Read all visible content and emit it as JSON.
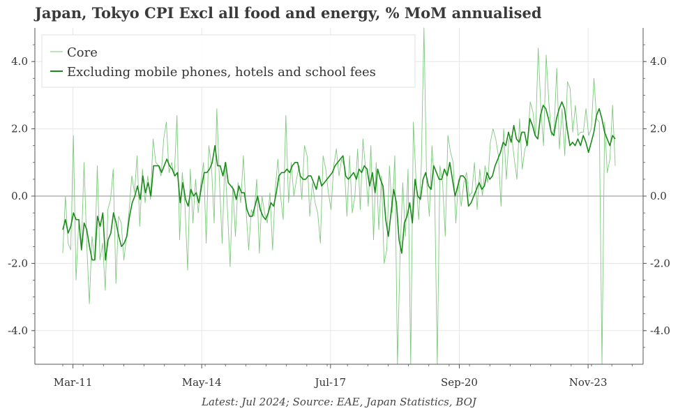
{
  "title": "Japan, Tokyo CPI Excl all food and energy, % MoM annualised",
  "footer": "Latest: Jul 2024; Source: EAE, Japan Statistics, BOJ",
  "chart_data": {
    "type": "line",
    "title": "Japan, Tokyo CPI Excl all food and energy, % MoM annualised",
    "xlabel": "",
    "ylabel": "",
    "x_ticks": [
      "Mar-11",
      "May-14",
      "Jul-17",
      "Sep-20",
      "Nov-23"
    ],
    "x_tick_dates": [
      "2011-03",
      "2014-05",
      "2017-07",
      "2020-09",
      "2023-11"
    ],
    "x_start": "2010-12",
    "x_end": "2024-07",
    "y_ticks": [
      "-4.0",
      "-2.0",
      "0.0",
      "2.0",
      "4.0"
    ],
    "ylim": [
      -5.0,
      5.0
    ],
    "grid": true,
    "dual_y_axis": true,
    "legend_position": "top-left",
    "series": [
      {
        "name": "Core",
        "color": "#7fc97f",
        "values": [
          -1.7,
          0.0,
          -1.4,
          -1.6,
          1.8,
          -2.5,
          -0.8,
          -1.5,
          1.0,
          -1.4,
          -3.2,
          -1.2,
          -1.9,
          0.9,
          -1.9,
          -1.4,
          -2.8,
          -0.4,
          -0.1,
          0.8,
          -2.6,
          -0.6,
          -0.8,
          -1.9,
          -1.2,
          -0.4,
          0.6,
          0.1,
          1.2,
          -0.9,
          0.8,
          -0.2,
          0.6,
          -0.1,
          1.7,
          1.0,
          0.9,
          0.6,
          1.7,
          2.2,
          0.7,
          1.0,
          0.6,
          2.4,
          -1.3,
          0.7,
          -0.3,
          -2.2,
          0.8,
          -0.8,
          0.5,
          -0.5,
          0.4,
          1.0,
          -1.4,
          1.5,
          0.9,
          -0.8,
          2.6,
          0.4,
          -1.4,
          1.0,
          -0.4,
          -2.1,
          0.3,
          -1.2,
          0.4,
          -0.2,
          1.2,
          -0.4,
          -1.6,
          -0.4,
          -0.6,
          0.5,
          -1.7,
          0.0,
          -0.5,
          -0.8,
          0.1,
          -1.6,
          0.2,
          1.1,
          0.0,
          -0.7,
          2.4,
          -0.2,
          1.0,
          0.0,
          0.5,
          0.9,
          -0.1,
          1.5,
          1.2,
          -0.6,
          0.4,
          -0.2,
          -0.5,
          -1.4,
          1.2,
          0.8,
          0.1,
          -0.4,
          0.9,
          1.4,
          0.6,
          1.1,
          0.9,
          -0.6,
          1.2,
          -0.5,
          0.0,
          1.4,
          -0.4,
          1.7,
          0.8,
          -0.3,
          1.5,
          -1.3,
          1.0,
          -1.0,
          0.6,
          -2.0,
          -1.6,
          0.9,
          -0.5,
          1.2,
          -5.0,
          -1.7,
          0.4,
          -1.2,
          0.8,
          -5.0,
          2.2,
          0.5,
          -0.7,
          0.9,
          5.0,
          0.4,
          -0.6,
          1.5,
          0.2,
          -5.0,
          0.9,
          0.4,
          -1.2,
          1.8,
          1.3,
          1.0,
          -0.8,
          0.5,
          -0.3,
          0.4,
          0.7,
          0.0,
          0.1,
          1.0,
          -0.4,
          0.8,
          0.0,
          0.9,
          0.4,
          1.6,
          2.0,
          1.7,
          1.2,
          -0.3,
          2.0,
          0.5,
          1.7,
          1.8,
          1.1,
          0.5,
          2.3,
          0.8,
          1.4,
          1.6,
          2.8,
          2.5,
          1.8,
          4.4,
          2.6,
          1.5,
          4.2,
          2.8,
          1.8,
          2.0,
          3.8,
          1.4,
          2.6,
          1.2,
          3.4,
          3.2,
          1.9,
          2.7,
          1.8,
          1.9,
          1.9,
          2.6,
          1.8,
          2.0,
          3.5,
          2.3,
          2.2,
          -5.0,
          2.2,
          0.7,
          1.1,
          2.7,
          0.9
        ]
      },
      {
        "name": "Excluding mobile phones, hotels and school fees",
        "color": "#1a8a1a",
        "values": [
          -1.0,
          -0.7,
          -1.1,
          -0.9,
          -0.5,
          -0.7,
          -0.7,
          -1.6,
          -0.8,
          -1.0,
          -1.5,
          -1.9,
          -1.9,
          -0.6,
          -0.9,
          -0.5,
          -1.9,
          -1.3,
          -1.1,
          -0.5,
          -0.8,
          -1.2,
          -1.5,
          -1.4,
          -1.2,
          -0.6,
          -0.2,
          0.0,
          0.3,
          -0.1,
          0.6,
          0.1,
          0.4,
          0.0,
          0.9,
          0.9,
          0.9,
          0.7,
          0.9,
          1.1,
          0.9,
          0.8,
          0.6,
          0.7,
          -0.2,
          0.4,
          -0.1,
          -0.3,
          0.2,
          0.0,
          0.1,
          -0.2,
          0.3,
          0.7,
          0.7,
          0.8,
          1.0,
          1.5,
          0.9,
          0.9,
          0.6,
          1.0,
          0.4,
          0.3,
          0.2,
          -0.1,
          0.3,
          0.1,
          0.1,
          -0.4,
          -0.6,
          -0.6,
          -0.3,
          0.0,
          -0.4,
          -0.6,
          -0.7,
          -0.5,
          -0.2,
          -0.3,
          0.1,
          0.6,
          0.7,
          0.7,
          0.8,
          0.7,
          0.9,
          1.0,
          1.0,
          0.6,
          0.5,
          0.5,
          0.6,
          0.6,
          0.4,
          0.2,
          0.6,
          0.3,
          0.4,
          0.5,
          0.6,
          0.7,
          0.9,
          1.0,
          1.1,
          1.2,
          0.6,
          0.5,
          0.6,
          0.7,
          0.5,
          0.8,
          0.7,
          0.9,
          0.8,
          0.3,
          0.7,
          0.1,
          0.8,
          0.5,
          0.3,
          -0.7,
          -1.2,
          -0.5,
          0.2,
          -0.2,
          -1.3,
          -1.7,
          -0.8,
          -0.6,
          -0.2,
          -0.8,
          0.5,
          0.0,
          -0.1,
          0.5,
          0.7,
          0.3,
          0.2,
          0.9,
          0.7,
          0.5,
          0.5,
          0.8,
          0.6,
          1.0,
          0.5,
          0.0,
          0.3,
          0.6,
          0.6,
          0.5,
          -0.3,
          -0.2,
          0.0,
          0.2,
          0.4,
          0.2,
          0.3,
          0.7,
          0.5,
          0.6,
          0.9,
          1.1,
          1.3,
          1.6,
          1.5,
          1.9,
          1.6,
          2.1,
          1.7,
          1.6,
          1.9,
          1.9,
          1.5,
          2.3,
          2.1,
          1.8,
          1.7,
          2.4,
          2.7,
          2.6,
          2.3,
          1.9,
          1.8,
          2.3,
          2.6,
          2.8,
          2.6,
          2.0,
          1.5,
          1.6,
          1.5,
          1.7,
          1.5,
          1.8,
          1.6,
          1.3,
          1.6,
          1.9,
          2.4,
          2.6,
          2.3,
          1.9,
          1.7,
          1.5,
          1.8,
          1.7
        ]
      }
    ]
  }
}
